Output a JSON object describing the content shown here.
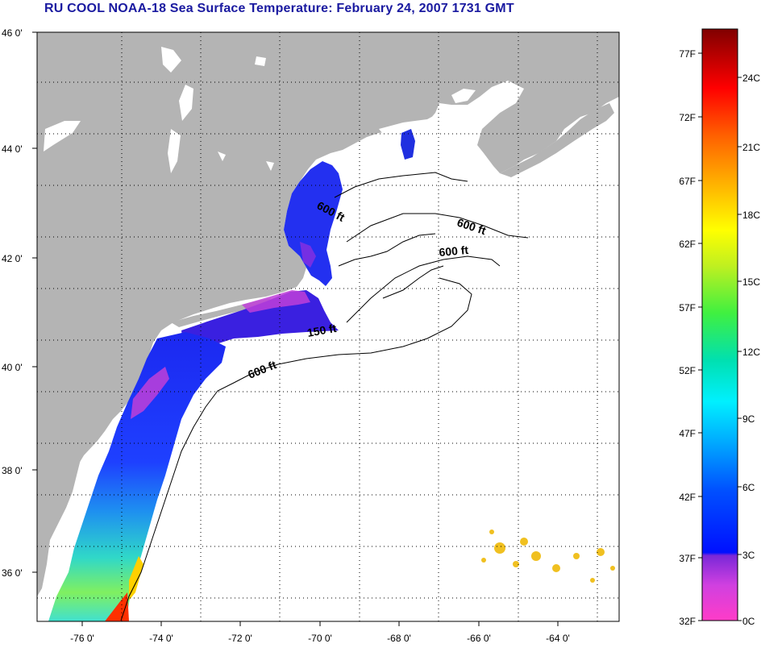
{
  "title": "RU COOL  NOAA-18  Sea Surface Temperature:  February 24, 2007 1731 GMT",
  "lat_labels": [
    "46 0'",
    "44 0'",
    "42 0'",
    "40 0'",
    "38 0'",
    "36 0'"
  ],
  "lon_labels": [
    "-76 0'",
    "-74 0'",
    "-72 0'",
    "-70 0'",
    "-68 0'",
    "-66 0'",
    "-64 0'"
  ],
  "contour_labels": [
    "600 ft",
    "600 ft",
    "600 ft",
    "150 ft",
    "600 ft"
  ],
  "colorbar": {
    "fahrenheit": [
      "77F",
      "72F",
      "67F",
      "62F",
      "57F",
      "52F",
      "47F",
      "42F",
      "37F",
      "32F"
    ],
    "celsius": [
      "24C",
      "21C",
      "18C",
      "15C",
      "12C",
      "9C",
      "6C",
      "3C",
      "0C"
    ]
  },
  "colors": {
    "land": "#b4b4b4",
    "ocean_no_data": "#ffffff",
    "title": "#1a1aa0"
  }
}
